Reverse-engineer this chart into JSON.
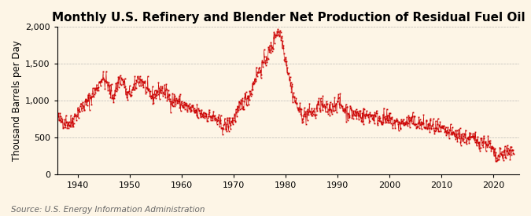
{
  "title": "Monthly U.S. Refinery and Blender Net Production of Residual Fuel Oil",
  "ylabel": "Thousand Barrels per Day",
  "source": "Source: U.S. Energy Information Administration",
  "bg_color": "#fdf5e6",
  "line_color": "#cc0000",
  "marker_color": "#cc0000",
  "ylim": [
    0,
    2000
  ],
  "yticks": [
    0,
    500,
    1000,
    1500,
    2000
  ],
  "xlim_start": 1936,
  "xlim_end": 2025,
  "xticks": [
    1940,
    1950,
    1960,
    1970,
    1980,
    1990,
    2000,
    2010,
    2020
  ],
  "grid_color": "#aaaaaa",
  "title_fontsize": 11,
  "label_fontsize": 8.5,
  "tick_fontsize": 8,
  "source_fontsize": 7.5,
  "key_years": [
    1936.0,
    1937.5,
    1938.5,
    1939.5,
    1940.5,
    1941.5,
    1942.5,
    1943.5,
    1944.5,
    1945.5,
    1946.0,
    1946.8,
    1947.5,
    1948.0,
    1948.8,
    1949.5,
    1950.0,
    1950.8,
    1951.5,
    1952.5,
    1953.5,
    1954.5,
    1955.0,
    1956.0,
    1957.0,
    1958.0,
    1959.0,
    1960.0,
    1961.0,
    1962.0,
    1963.0,
    1964.0,
    1965.0,
    1965.8,
    1966.5,
    1967.0,
    1967.8,
    1968.5,
    1969.0,
    1969.8,
    1970.5,
    1971.0,
    1971.5,
    1972.0,
    1972.8,
    1973.5,
    1974.0,
    1974.8,
    1975.5,
    1976.0,
    1976.8,
    1977.5,
    1978.0,
    1978.5,
    1979.0,
    1979.5,
    1980.0,
    1980.5,
    1981.0,
    1981.8,
    1982.5,
    1983.0,
    1983.8,
    1984.5,
    1985.0,
    1985.8,
    1986.0,
    1986.8,
    1987.5,
    1988.0,
    1988.8,
    1989.5,
    1990.0,
    1990.5,
    1991.0,
    1991.8,
    1992.5,
    1993.0,
    1994.0,
    1995.0,
    1996.0,
    1997.0,
    1998.0,
    1999.0,
    2000.0,
    2001.0,
    2002.0,
    2003.0,
    2004.0,
    2005.0,
    2006.0,
    2007.0,
    2008.0,
    2009.0,
    2010.0,
    2011.0,
    2012.0,
    2013.0,
    2014.0,
    2015.0,
    2016.0,
    2017.0,
    2018.0,
    2019.0,
    2020.0,
    2020.5,
    2021.0,
    2021.8,
    2022.5,
    2023.0,
    2023.8,
    2024.0
  ],
  "key_vals": [
    750,
    720,
    680,
    800,
    900,
    950,
    1050,
    1150,
    1300,
    1250,
    1150,
    1050,
    1200,
    1300,
    1250,
    1050,
    1100,
    1150,
    1300,
    1250,
    1100,
    1050,
    1100,
    1150,
    1100,
    1000,
    1000,
    950,
    900,
    870,
    830,
    820,
    800,
    780,
    750,
    700,
    660,
    650,
    680,
    730,
    820,
    870,
    950,
    1000,
    1050,
    1150,
    1300,
    1400,
    1450,
    1550,
    1650,
    1750,
    1900,
    1950,
    1900,
    1750,
    1550,
    1400,
    1200,
    1000,
    880,
    820,
    800,
    830,
    850,
    820,
    900,
    950,
    900,
    870,
    900,
    950,
    1000,
    950,
    900,
    850,
    830,
    820,
    810,
    790,
    800,
    780,
    760,
    750,
    730,
    700,
    680,
    700,
    720,
    700,
    680,
    660,
    650,
    620,
    600,
    570,
    550,
    530,
    510,
    490,
    480,
    460,
    440,
    420,
    300,
    200,
    230,
    280,
    300,
    280,
    310,
    320
  ]
}
